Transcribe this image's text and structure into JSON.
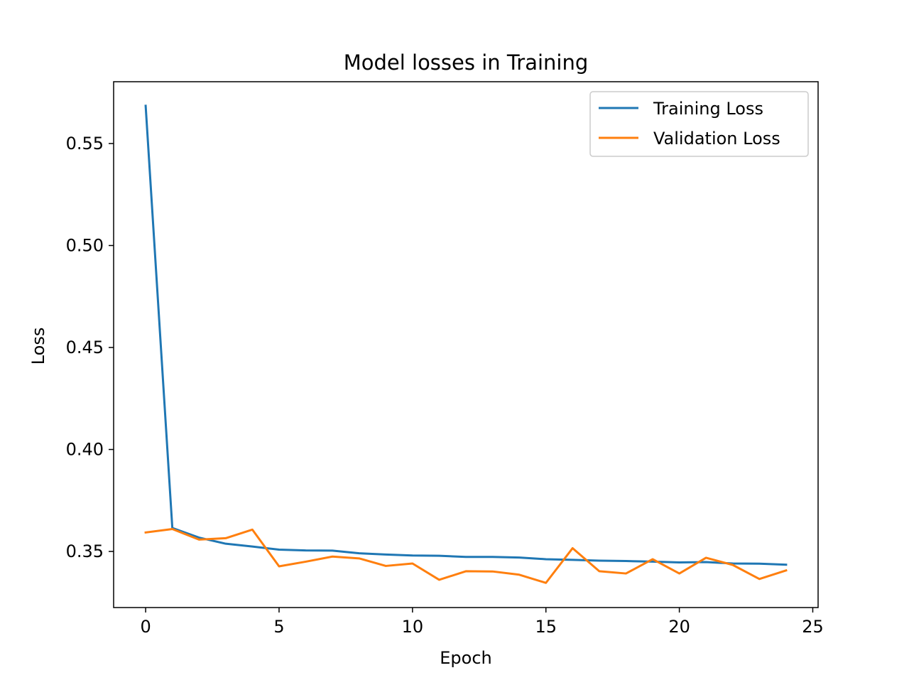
{
  "chart_data": {
    "type": "line",
    "title": "Model losses in Training",
    "xlabel": "Epoch",
    "ylabel": "Loss",
    "xlim": [
      -1.2,
      25.2
    ],
    "ylim": [
      0.3225,
      0.5803
    ],
    "xticks": [
      0,
      5,
      10,
      15,
      20,
      25
    ],
    "xtick_labels": [
      "0",
      "5",
      "10",
      "15",
      "20",
      "25"
    ],
    "yticks": [
      0.35,
      0.4,
      0.45,
      0.5,
      0.55
    ],
    "ytick_labels": [
      "0.35",
      "0.40",
      "0.45",
      "0.50",
      "0.55"
    ],
    "grid": false,
    "legend_position": "top-right",
    "x": [
      0,
      1,
      2,
      3,
      4,
      5,
      6,
      7,
      8,
      9,
      10,
      11,
      12,
      13,
      14,
      15,
      16,
      17,
      18,
      19,
      20,
      21,
      22,
      23,
      24
    ],
    "series": [
      {
        "name": "Training Loss",
        "color": "#1f77b4",
        "values": [
          0.5685,
          0.3615,
          0.3568,
          0.3538,
          0.3524,
          0.3509,
          0.3505,
          0.3504,
          0.3491,
          0.3485,
          0.348,
          0.3479,
          0.3473,
          0.3473,
          0.347,
          0.3462,
          0.3459,
          0.3455,
          0.3453,
          0.345,
          0.3446,
          0.3448,
          0.3441,
          0.344,
          0.3435
        ]
      },
      {
        "name": "Validation Loss",
        "color": "#ff7f0e",
        "values": [
          0.3593,
          0.361,
          0.3558,
          0.3565,
          0.3607,
          0.3427,
          0.345,
          0.3475,
          0.3466,
          0.3429,
          0.3441,
          0.3361,
          0.3403,
          0.3402,
          0.3386,
          0.3346,
          0.3516,
          0.3403,
          0.3392,
          0.3462,
          0.3392,
          0.3469,
          0.3434,
          0.3365,
          0.3407
        ]
      }
    ]
  }
}
